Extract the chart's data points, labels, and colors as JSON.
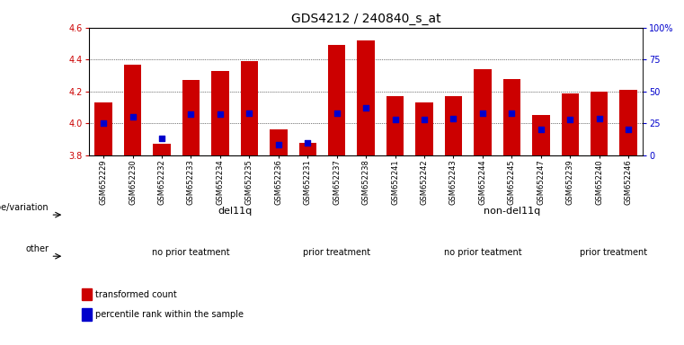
{
  "title": "GDS4212 / 240840_s_at",
  "samples": [
    "GSM652229",
    "GSM652230",
    "GSM652232",
    "GSM652233",
    "GSM652234",
    "GSM652235",
    "GSM652236",
    "GSM652231",
    "GSM652237",
    "GSM652238",
    "GSM652241",
    "GSM652242",
    "GSM652243",
    "GSM652244",
    "GSM652245",
    "GSM652247",
    "GSM652239",
    "GSM652240",
    "GSM652246"
  ],
  "bar_values": [
    4.13,
    4.37,
    3.87,
    4.27,
    4.33,
    4.39,
    3.96,
    3.88,
    4.49,
    4.52,
    4.17,
    4.13,
    4.17,
    4.34,
    4.28,
    4.05,
    4.19,
    4.2,
    4.21
  ],
  "percentile_values": [
    25,
    30,
    13,
    32,
    32,
    33,
    8,
    10,
    33,
    37,
    28,
    28,
    29,
    33,
    33,
    20,
    28,
    29,
    20
  ],
  "ymin": 3.8,
  "ymax": 4.6,
  "y2min": 0,
  "y2max": 100,
  "bar_color": "#cc0000",
  "blue_color": "#0000cc",
  "bar_base": 3.8,
  "genotype_groups": [
    {
      "label": "del11q",
      "start": 0,
      "end": 10,
      "color": "#a8e8a8"
    },
    {
      "label": "non-del11q",
      "start": 10,
      "end": 19,
      "color": "#44cc66"
    }
  ],
  "treatment_groups": [
    {
      "label": "no prior teatment",
      "start": 0,
      "end": 7,
      "color": "#ee88ee"
    },
    {
      "label": "prior treatment",
      "start": 7,
      "end": 10,
      "color": "#cc44cc"
    },
    {
      "label": "no prior teatment",
      "start": 10,
      "end": 17,
      "color": "#ee88ee"
    },
    {
      "label": "prior treatment",
      "start": 17,
      "end": 19,
      "color": "#cc44cc"
    }
  ],
  "legend_items": [
    {
      "label": "transformed count",
      "color": "#cc0000"
    },
    {
      "label": "percentile rank within the sample",
      "color": "#0000cc"
    }
  ],
  "yticks_left": [
    3.8,
    4.0,
    4.2,
    4.4,
    4.6
  ],
  "yticks_right": [
    0,
    25,
    50,
    75,
    100
  ],
  "ytick_labels_right": [
    "0",
    "25",
    "50",
    "75",
    "100%"
  ],
  "background_color": "#ffffff",
  "grid_color": "#000000",
  "title_fontsize": 10,
  "tick_fontsize": 7,
  "label_fontsize": 8,
  "bar_width": 0.6
}
